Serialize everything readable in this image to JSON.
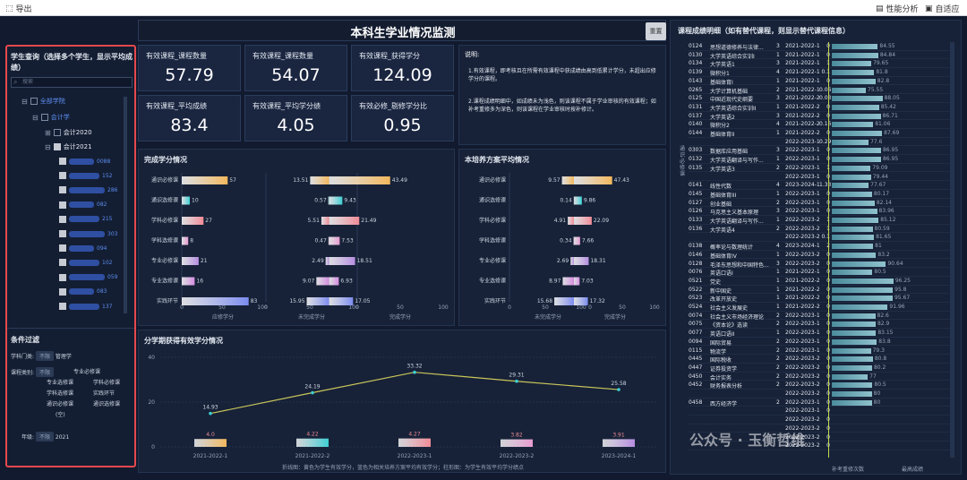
{
  "topbar": {
    "export": "导出",
    "perf": "性能分析",
    "fit": "自适应"
  },
  "title": "本科生学业情况监测",
  "title_btn": "重置",
  "selector": {
    "title": "学生查询（选择多个学生，显示平均成绩）",
    "search_placeholder": "搜索",
    "tree": {
      "l1": "全部学院",
      "l2": "会计学",
      "l3a": "会计2020",
      "l3b": "会计2021",
      "students": [
        "0088",
        "152",
        "286",
        "082",
        "215",
        "303",
        "094",
        "102",
        "059",
        "083",
        "137"
      ]
    }
  },
  "filters": {
    "title": "条件过滤",
    "discipline_label": "学科门类:",
    "discipline_sel": "不限",
    "discipline_val": "管理学",
    "course_label": "课程类别:",
    "course_sel": "不限",
    "course_opts": [
      "专业必修课",
      "专业选修课",
      "学科必修课",
      "学科选修课",
      "实践环节",
      "通识必修课",
      "通识选修课",
      "(空)"
    ],
    "grade_label": "年级:",
    "grade_sel": "不限",
    "grade_val": "2021"
  },
  "kpis": [
    {
      "label": "有效课程_课程数量",
      "value": "57.79"
    },
    {
      "label": "有效课程_课程数量",
      "value": "54.07"
    },
    {
      "label": "有效课程_获得学分",
      "value": "124.09"
    },
    {
      "label": "有效课程_平均成绩",
      "value": "83.4"
    },
    {
      "label": "有效课程_平均学分绩",
      "value": "4.05"
    },
    {
      "label": "有效必修_剔修学分比",
      "value": "0.95"
    }
  ],
  "notes": {
    "title": "说明:",
    "p1": "1.有效课程，即考核且在所需有效课程中获成绩由高到低累计学分，未超出应修学分的课程。",
    "p2": "2.课程成绩明细中，如成绩未为浅色，则该课程不属于学业审核的有效课程；如补考重修多为深色，则该课程在学业审核时按补修计。"
  },
  "completion": {
    "title": "完成学分情况",
    "axis1": "应修学分",
    "axis2": "未完成学分",
    "axis3": "完成学分"
  },
  "program": {
    "title": "本培养方案平均情况",
    "axis1": "未完成学分",
    "axis2": "完成学分"
  },
  "chart_data": [
    {
      "type": "bar",
      "title": "完成学分情况",
      "categories": [
        "通识必修课",
        "通识选修课",
        "学科必修课",
        "学科选修课",
        "专业必修课",
        "专业选修课",
        "实践环节"
      ],
      "series": [
        {
          "name": "应修学分",
          "values": [
            57,
            10,
            27,
            8,
            21,
            16,
            83
          ]
        },
        {
          "name": "未完成学分",
          "values": [
            13.51,
            0.57,
            5.51,
            0.47,
            2.49,
            9.07,
            15.95
          ]
        },
        {
          "name": "完成学分",
          "values": [
            43.49,
            9.43,
            21.49,
            7.53,
            18.51,
            6.93,
            17.05
          ]
        }
      ],
      "xlim": [
        0,
        100
      ],
      "x_ticks": [
        "0",
        "50",
        "100"
      ]
    },
    {
      "type": "bar",
      "title": "本培养方案平均情况",
      "categories": [
        "通识必修课",
        "通识选修课",
        "学科必修课",
        "学科选修课",
        "专业必修课",
        "专业选修课",
        "实践环节"
      ],
      "series": [
        {
          "name": "未完成学分",
          "values": [
            9.57,
            0.14,
            4.91,
            0.34,
            2.69,
            8.97,
            15.68
          ]
        },
        {
          "name": "完成学分",
          "values": [
            47.43,
            9.86,
            22.09,
            7.66,
            18.31,
            7.03,
            17.32
          ]
        }
      ],
      "xlim": [
        0,
        100
      ],
      "x_ticks": [
        "0",
        "50",
        "100"
      ]
    },
    {
      "type": "line",
      "title": "分学期获得有效学分情况",
      "categories": [
        "2021-2022-1",
        "2021-2022-2",
        "2022-2023-1",
        "2022-2023-2",
        "2023-2024-1"
      ],
      "series": [
        {
          "name": "学生有效学分",
          "values": [
            14.93,
            24.19,
            33.32,
            29.31,
            25.58
          ]
        },
        {
          "name": "相关培养方案平均有效学分",
          "values": [
            4.0,
            4.22,
            4.27,
            3.82,
            3.91
          ]
        }
      ],
      "ylim": [
        0,
        40
      ],
      "y_ticks": [
        "0",
        "20",
        "40"
      ],
      "caption": "折线图：黄色为学生有效学分，蓝色为相关培养方案平均有效学分；柱形图：为学生有效平均学分绩点"
    }
  ],
  "detail": {
    "title": "课程成绩明细（如有替代课程，则显示替代课程信息）",
    "side_label": "通识必修课",
    "foot1": "补考重修次数",
    "foot2": "最高成绩",
    "rows": [
      [
        "0124",
        "思想道德修养与法律...",
        "3",
        "2021-2022-1",
        "0",
        "84.55"
      ],
      [
        "0130",
        "大学英语综合实训I",
        "1",
        "2021-2022-1",
        "0",
        "84.84"
      ],
      [
        "0134",
        "大学英语1",
        "3",
        "2021-2022-1",
        "1",
        "79.65"
      ],
      [
        "0139",
        "微积分1",
        "4",
        "2021-2022-1",
        "0.1",
        "81.8"
      ],
      [
        "0143",
        "基础体育I",
        "1",
        "2021-2022-1",
        "0",
        "82.8"
      ],
      [
        "0265",
        "大学计算机基础",
        "2",
        "2021-2022-1",
        "0.06",
        "75.55"
      ],
      [
        "0125",
        "中国近现代史纲要",
        "3",
        "2021-2022-2",
        "0.03",
        "88.05"
      ],
      [
        "0131",
        "大学英语综合实训II",
        "1",
        "2021-2022-2",
        "0",
        "85.42"
      ],
      [
        "0137",
        "大学英语2",
        "3",
        "2021-2022-2",
        "0",
        "86.71"
      ],
      [
        "0140",
        "微积分2",
        "4",
        "2021-2022-2",
        "0.16",
        "81.06"
      ],
      [
        "0144",
        "基础体育II",
        "1",
        "2021-2022-2",
        "0",
        "87.69"
      ],
      [
        "",
        "",
        "",
        "2022-2023-1",
        "0.29",
        "77.6"
      ],
      [
        "0303",
        "数据库应用基础",
        "3",
        "2022-2023-1",
        "0",
        "86.95"
      ],
      [
        "0132",
        "大学英语翻译与写作...",
        "1",
        "2022-2023-1",
        "0",
        "86.95"
      ],
      [
        "0135",
        "大学英语3",
        "2",
        "2022-2023-1",
        "1",
        "79.09"
      ],
      [
        "",
        "",
        "",
        "2022-2023-1",
        "0",
        "79.44"
      ],
      [
        "0141",
        "线性代数",
        "4",
        "2023-2024-1",
        "1.33",
        "77.67"
      ],
      [
        "0145",
        "基础体育III",
        "1",
        "2022-2023-1",
        "0",
        "80.17"
      ],
      [
        "0127",
        "创业基础",
        "2",
        "2022-2023-1",
        "0",
        "82.14"
      ],
      [
        "0126",
        "马克思主义基本原理",
        "3",
        "2022-2023-1",
        "0",
        "83.96"
      ],
      [
        "0133",
        "大学英语翻译与写作...",
        "1",
        "2022-2023-2",
        "1",
        "85.12"
      ],
      [
        "0136",
        "大学英语4",
        "2",
        "2022-2023-2",
        "1",
        "80.59"
      ],
      [
        "",
        "",
        "",
        "2022-2023-2",
        "0.1",
        "81.65"
      ],
      [
        "0138",
        "概率论与数理统计",
        "4",
        "2023-2024-1",
        "2",
        "81"
      ],
      [
        "0146",
        "基础体育IV",
        "1",
        "2022-2023-2",
        "0",
        "83.2"
      ],
      [
        "0128",
        "毛泽东思想和中国特色...",
        "3",
        "2022-2023-2",
        "0",
        "90.64"
      ],
      [
        "0076",
        "英语口语I",
        "1",
        "2021-2022-1",
        "0",
        "80.5"
      ],
      [
        "0521",
        "党史",
        "1",
        "2021-2022-2",
        "0",
        "96.25"
      ],
      [
        "0522",
        "新中国史",
        "1",
        "2021-2022-2",
        "0",
        "95.8"
      ],
      [
        "0523",
        "改革开放史",
        "1",
        "2021-2022-2",
        "0",
        "95.67"
      ],
      [
        "0524",
        "社会主义发展史",
        "1",
        "2021-2022-2",
        "0",
        "91.96"
      ],
      [
        "0074",
        "社会主义市场经济理论",
        "2",
        "2022-2023-1",
        "0",
        "82.6"
      ],
      [
        "0075",
        "《资本论》选读",
        "2",
        "2022-2023-1",
        "0",
        "82.9"
      ],
      [
        "0077",
        "英语口语II",
        "1",
        "2022-2023-1",
        "0",
        "83.15"
      ],
      [
        "0094",
        "国际贸易",
        "2",
        "2022-2023-1",
        "0",
        "83.8"
      ],
      [
        "0115",
        "物流学",
        "2",
        "2022-2023-1",
        "0",
        "79.3"
      ],
      [
        "0445",
        "国际税收",
        "2",
        "2022-2023-2",
        "0",
        "80.8"
      ],
      [
        "0447",
        "证券投资学",
        "2",
        "2022-2023-2",
        "0",
        "80.2"
      ],
      [
        "0450",
        "会计实务",
        "2",
        "2022-2023-2",
        "0",
        "77"
      ],
      [
        "0452",
        "财务报表分析",
        "2",
        "2022-2023-2",
        "0",
        "80.5"
      ],
      [
        "",
        "",
        "",
        "2022-2023-2",
        "0",
        "80"
      ],
      [
        "0458",
        "西方经济学",
        "2",
        "2022-2023-1",
        "0",
        "80"
      ],
      [
        "",
        "",
        "",
        "2022-2023-1",
        "0",
        ""
      ],
      [
        "",
        "",
        "",
        "2022-2023-2",
        "0",
        ""
      ],
      [
        "",
        "",
        "",
        "2022-2023-2",
        "0",
        ""
      ],
      [
        "",
        "",
        "",
        "2022-2023-2",
        "0",
        ""
      ],
      [
        "",
        "",
        "",
        "2022-2023-2",
        "0",
        ""
      ]
    ]
  },
  "watermark": "公众号 · 玉衡哲维"
}
